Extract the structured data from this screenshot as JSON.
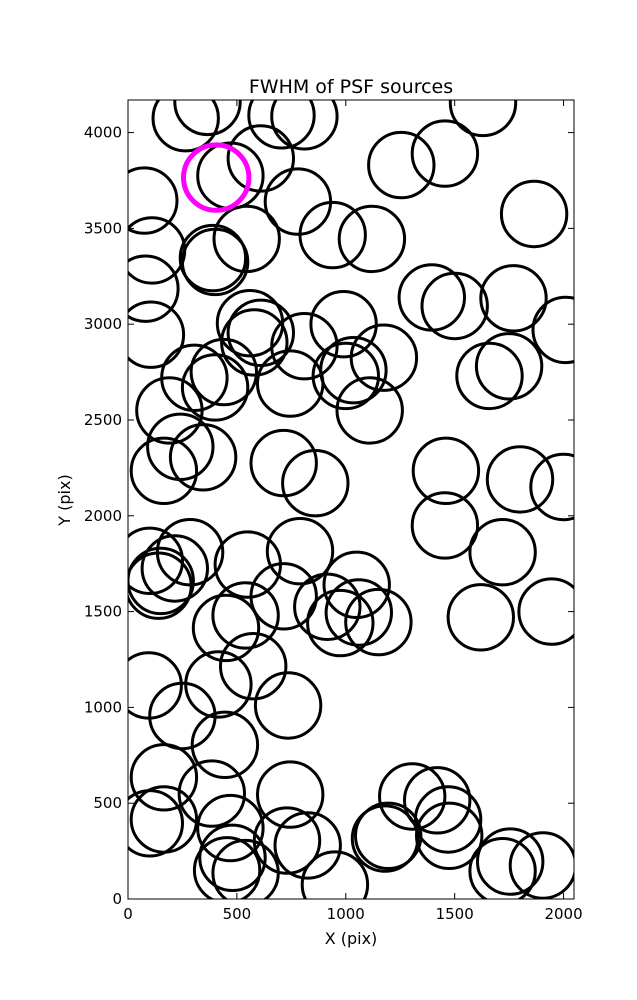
{
  "chart_data": {
    "type": "scatter",
    "title": "FWHM of PSF sources",
    "xlabel": "X (pix)",
    "ylabel": "Y (pix)",
    "xlim": [
      0,
      2048
    ],
    "ylim": [
      0,
      4170
    ],
    "xticks": [
      0,
      500,
      1000,
      1500,
      2000
    ],
    "yticks": [
      0,
      500,
      1000,
      1500,
      2000,
      2500,
      3000,
      3500,
      4000
    ],
    "grid": false,
    "marker_radius": 150,
    "highlight_color": "#ff00ff",
    "highlight": {
      "x": 405,
      "y": 3765
    },
    "sources": [
      {
        "x": 365,
        "y": 4160
      },
      {
        "x": 265,
        "y": 4075
      },
      {
        "x": 705,
        "y": 4090
      },
      {
        "x": 810,
        "y": 4085
      },
      {
        "x": 1630,
        "y": 4155
      },
      {
        "x": 610,
        "y": 3865
      },
      {
        "x": 470,
        "y": 3775
      },
      {
        "x": 1255,
        "y": 3830
      },
      {
        "x": 1455,
        "y": 3890
      },
      {
        "x": 75,
        "y": 3645
      },
      {
        "x": 780,
        "y": 3640
      },
      {
        "x": 1865,
        "y": 3575
      },
      {
        "x": 940,
        "y": 3465
      },
      {
        "x": 1120,
        "y": 3445
      },
      {
        "x": 545,
        "y": 3445
      },
      {
        "x": 110,
        "y": 3385
      },
      {
        "x": 390,
        "y": 3345
      },
      {
        "x": 400,
        "y": 3325
      },
      {
        "x": 80,
        "y": 3185
      },
      {
        "x": 1395,
        "y": 3140
      },
      {
        "x": 1500,
        "y": 3095
      },
      {
        "x": 1770,
        "y": 3135
      },
      {
        "x": 560,
        "y": 3005
      },
      {
        "x": 610,
        "y": 2955
      },
      {
        "x": 580,
        "y": 2905
      },
      {
        "x": 990,
        "y": 3000
      },
      {
        "x": 105,
        "y": 2945
      },
      {
        "x": 2010,
        "y": 2970
      },
      {
        "x": 810,
        "y": 2885
      },
      {
        "x": 1175,
        "y": 2825
      },
      {
        "x": 305,
        "y": 2720
      },
      {
        "x": 440,
        "y": 2750
      },
      {
        "x": 400,
        "y": 2670
      },
      {
        "x": 745,
        "y": 2690
      },
      {
        "x": 1000,
        "y": 2730
      },
      {
        "x": 1035,
        "y": 2760
      },
      {
        "x": 1660,
        "y": 2730
      },
      {
        "x": 1750,
        "y": 2780
      },
      {
        "x": 190,
        "y": 2550
      },
      {
        "x": 1110,
        "y": 2550
      },
      {
        "x": 240,
        "y": 2360
      },
      {
        "x": 345,
        "y": 2305
      },
      {
        "x": 165,
        "y": 2235
      },
      {
        "x": 715,
        "y": 2275
      },
      {
        "x": 860,
        "y": 2170
      },
      {
        "x": 1460,
        "y": 2235
      },
      {
        "x": 1800,
        "y": 2190
      },
      {
        "x": 2000,
        "y": 2150
      },
      {
        "x": 1455,
        "y": 1950
      },
      {
        "x": 1720,
        "y": 1810
      },
      {
        "x": 100,
        "y": 1765
      },
      {
        "x": 285,
        "y": 1810
      },
      {
        "x": 790,
        "y": 1815
      },
      {
        "x": 550,
        "y": 1745
      },
      {
        "x": 215,
        "y": 1725
      },
      {
        "x": 150,
        "y": 1660
      },
      {
        "x": 140,
        "y": 1635
      },
      {
        "x": 1050,
        "y": 1640
      },
      {
        "x": 715,
        "y": 1580
      },
      {
        "x": 915,
        "y": 1525
      },
      {
        "x": 1620,
        "y": 1470
      },
      {
        "x": 1945,
        "y": 1500
      },
      {
        "x": 540,
        "y": 1480
      },
      {
        "x": 1060,
        "y": 1495
      },
      {
        "x": 450,
        "y": 1415
      },
      {
        "x": 975,
        "y": 1440
      },
      {
        "x": 1150,
        "y": 1445
      },
      {
        "x": 575,
        "y": 1215
      },
      {
        "x": 95,
        "y": 1115
      },
      {
        "x": 415,
        "y": 1120
      },
      {
        "x": 735,
        "y": 1010
      },
      {
        "x": 250,
        "y": 955
      },
      {
        "x": 445,
        "y": 805
      },
      {
        "x": 165,
        "y": 635
      },
      {
        "x": 385,
        "y": 550
      },
      {
        "x": 745,
        "y": 545
      },
      {
        "x": 1305,
        "y": 535
      },
      {
        "x": 1420,
        "y": 515
      },
      {
        "x": 1470,
        "y": 415
      },
      {
        "x": 100,
        "y": 395
      },
      {
        "x": 165,
        "y": 415
      },
      {
        "x": 470,
        "y": 370
      },
      {
        "x": 1180,
        "y": 315
      },
      {
        "x": 1195,
        "y": 330
      },
      {
        "x": 1475,
        "y": 330
      },
      {
        "x": 730,
        "y": 305
      },
      {
        "x": 825,
        "y": 280
      },
      {
        "x": 480,
        "y": 215
      },
      {
        "x": 455,
        "y": 150
      },
      {
        "x": 540,
        "y": 135
      },
      {
        "x": 1720,
        "y": 145
      },
      {
        "x": 1755,
        "y": 195
      },
      {
        "x": 1905,
        "y": 175
      },
      {
        "x": 950,
        "y": 75
      }
    ]
  }
}
